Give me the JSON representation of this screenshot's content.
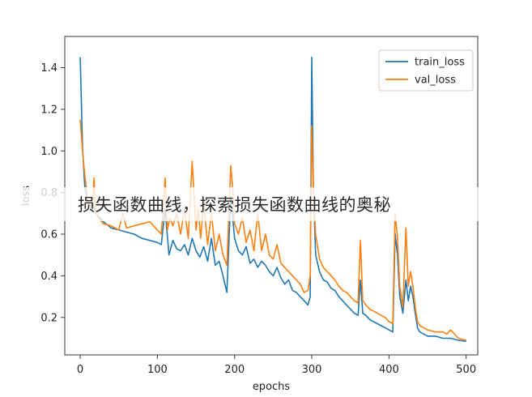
{
  "overlay_caption": "损失函数曲线，探索损失函数曲线的奥秘",
  "chart_data": {
    "type": "line",
    "title": "",
    "xlabel": "epochs",
    "ylabel": "loss",
    "xlim": [
      -20,
      515
    ],
    "ylim": [
      0.02,
      1.55
    ],
    "xticks": [
      0,
      100,
      200,
      300,
      400,
      500
    ],
    "yticks": [
      0.2,
      0.4,
      0.6,
      0.8,
      1.0,
      1.2,
      1.4
    ],
    "ytick_labels": [
      "0.2",
      "0.4",
      "0.6",
      "0.8",
      "1.0",
      "1.2",
      "1.4"
    ],
    "legend_position": "top-right",
    "series": [
      {
        "name": "train_loss",
        "color": "#1f77b4",
        "x": [
          0,
          3,
          6,
          10,
          15,
          20,
          25,
          30,
          40,
          50,
          60,
          70,
          80,
          90,
          100,
          105,
          110,
          115,
          120,
          125,
          130,
          135,
          140,
          145,
          150,
          155,
          160,
          165,
          170,
          175,
          180,
          185,
          190,
          195,
          200,
          205,
          210,
          215,
          220,
          225,
          230,
          235,
          240,
          245,
          250,
          255,
          260,
          265,
          270,
          275,
          280,
          285,
          290,
          295,
          298,
          300,
          302,
          305,
          310,
          315,
          320,
          325,
          330,
          335,
          340,
          345,
          350,
          355,
          360,
          363,
          366,
          370,
          375,
          380,
          385,
          390,
          395,
          400,
          405,
          408,
          411,
          414,
          418,
          422,
          425,
          428,
          431,
          434,
          437,
          440,
          445,
          450,
          460,
          470,
          480,
          490,
          500
        ],
        "values": [
          1.45,
          1.02,
          0.82,
          0.74,
          0.76,
          0.7,
          0.68,
          0.66,
          0.63,
          0.62,
          0.61,
          0.6,
          0.58,
          0.57,
          0.56,
          0.55,
          0.72,
          0.5,
          0.57,
          0.53,
          0.52,
          0.55,
          0.5,
          0.58,
          0.52,
          0.49,
          0.54,
          0.47,
          0.58,
          0.45,
          0.47,
          0.4,
          0.32,
          0.78,
          0.58,
          0.52,
          0.5,
          0.54,
          0.46,
          0.48,
          0.44,
          0.47,
          0.45,
          0.42,
          0.4,
          0.44,
          0.39,
          0.36,
          0.38,
          0.33,
          0.32,
          0.3,
          0.28,
          0.26,
          0.3,
          1.45,
          0.82,
          0.5,
          0.42,
          0.38,
          0.37,
          0.34,
          0.33,
          0.3,
          0.28,
          0.26,
          0.24,
          0.22,
          0.21,
          0.38,
          0.22,
          0.21,
          0.19,
          0.18,
          0.17,
          0.16,
          0.15,
          0.14,
          0.13,
          0.6,
          0.5,
          0.3,
          0.22,
          0.38,
          0.28,
          0.35,
          0.3,
          0.22,
          0.15,
          0.13,
          0.12,
          0.11,
          0.11,
          0.1,
          0.1,
          0.09,
          0.085
        ]
      },
      {
        "name": "val_loss",
        "color": "#ff7f0e",
        "x": [
          0,
          3,
          6,
          10,
          15,
          18,
          20,
          25,
          30,
          40,
          50,
          55,
          60,
          70,
          80,
          90,
          100,
          105,
          110,
          113,
          116,
          120,
          125,
          130,
          135,
          140,
          145,
          150,
          153,
          156,
          160,
          165,
          170,
          175,
          180,
          185,
          190,
          195,
          198,
          200,
          205,
          210,
          215,
          220,
          225,
          230,
          235,
          240,
          245,
          250,
          255,
          260,
          265,
          270,
          275,
          280,
          285,
          290,
          295,
          298,
          300,
          302,
          305,
          310,
          315,
          320,
          325,
          330,
          335,
          340,
          345,
          350,
          355,
          360,
          363,
          366,
          370,
          375,
          380,
          385,
          390,
          395,
          400,
          405,
          408,
          411,
          414,
          418,
          422,
          425,
          428,
          431,
          434,
          437,
          440,
          445,
          450,
          460,
          470,
          475,
          480,
          490,
          500
        ],
        "values": [
          1.15,
          1.0,
          0.88,
          0.76,
          0.72,
          0.87,
          0.7,
          0.67,
          0.65,
          0.64,
          0.62,
          0.7,
          0.63,
          0.64,
          0.65,
          0.66,
          0.62,
          0.6,
          0.87,
          0.62,
          0.68,
          0.64,
          0.7,
          0.6,
          0.72,
          0.58,
          0.95,
          0.62,
          0.72,
          0.58,
          0.75,
          0.55,
          0.7,
          0.52,
          0.6,
          0.5,
          0.45,
          0.93,
          0.8,
          0.65,
          0.6,
          0.68,
          0.56,
          0.62,
          0.52,
          0.7,
          0.52,
          0.6,
          0.5,
          0.48,
          0.55,
          0.46,
          0.44,
          0.42,
          0.4,
          0.38,
          0.36,
          0.32,
          0.33,
          0.4,
          1.12,
          0.82,
          0.6,
          0.48,
          0.44,
          0.42,
          0.4,
          0.38,
          0.35,
          0.33,
          0.32,
          0.3,
          0.28,
          0.27,
          0.57,
          0.28,
          0.26,
          0.24,
          0.23,
          0.22,
          0.21,
          0.2,
          0.18,
          0.17,
          0.7,
          0.58,
          0.35,
          0.25,
          0.63,
          0.35,
          0.42,
          0.35,
          0.25,
          0.18,
          0.16,
          0.15,
          0.14,
          0.13,
          0.13,
          0.12,
          0.14,
          0.1,
          0.09
        ]
      }
    ]
  }
}
